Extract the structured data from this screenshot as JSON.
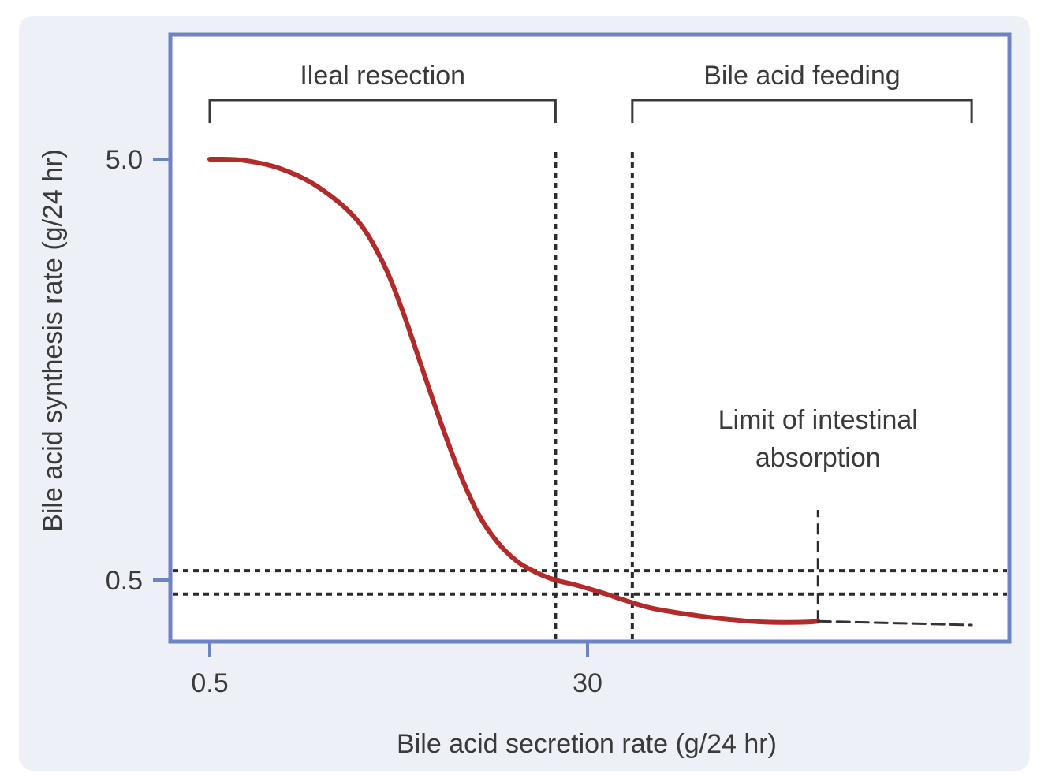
{
  "chart_data": {
    "type": "line",
    "title": "",
    "xlabel": "Bile acid secretion rate (g/24 hr)",
    "ylabel": "Bile acid synthesis rate (g/24 hr)",
    "x_ticks": [
      {
        "value": 0.5,
        "label": "0.5"
      },
      {
        "value": 30,
        "label": "30"
      }
    ],
    "y_ticks": [
      {
        "value": 5.0,
        "label": "5.0"
      },
      {
        "value": 0.5,
        "label": "0.5"
      }
    ],
    "xlim": [
      -3,
      63
    ],
    "ylim": [
      -0.1,
      6.3
    ],
    "series": [
      {
        "name": "Bile acid synthesis",
        "color": "#b22a2a",
        "x": [
          0.5,
          3,
          6,
          9,
          12,
          14,
          15.5,
          17,
          18.5,
          20,
          21.5,
          23,
          24.5,
          26,
          27.5,
          29,
          31,
          33,
          35,
          38,
          41,
          44,
          47,
          48
        ],
        "y": [
          5.0,
          4.99,
          4.9,
          4.7,
          4.35,
          3.9,
          3.4,
          2.8,
          2.2,
          1.65,
          1.2,
          0.9,
          0.7,
          0.58,
          0.5,
          0.45,
          0.37,
          0.28,
          0.2,
          0.13,
          0.08,
          0.05,
          0.05,
          0.06
        ]
      },
      {
        "name": "Extrapolation beyond absorption limit",
        "color": "#333333",
        "style": "dashed",
        "x": [
          48,
          60
        ],
        "y": [
          0.06,
          0.02
        ]
      }
    ],
    "reference_lines": {
      "horizontal": [
        {
          "value": 0.6,
          "style": "dotted"
        },
        {
          "value": 0.35,
          "style": "dotted"
        }
      ],
      "vertical": [
        {
          "value": 27.5,
          "style": "dotted"
        },
        {
          "value": 33.5,
          "style": "dotted"
        },
        {
          "value": 48,
          "style": "dashed",
          "from": 0.06,
          "to": 1.25
        }
      ]
    },
    "brackets": [
      {
        "label": "Ileal resection",
        "x_start": 0.5,
        "x_end": 27.5
      },
      {
        "label": "Bile acid feeding",
        "x_start": 33.5,
        "x_end": 60
      }
    ],
    "annotations": [
      {
        "text": [
          "Limit of intestinal",
          "absorption"
        ],
        "x": 48
      }
    ],
    "colors": {
      "frame": "#6f82c4",
      "panel": "#eef0f8",
      "curve": "#b22a2a",
      "ink": "#2b2b2b"
    },
    "grid": false,
    "legend": "none"
  }
}
